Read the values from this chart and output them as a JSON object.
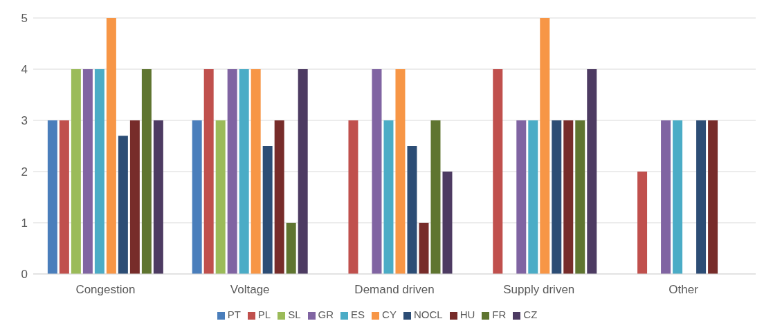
{
  "chart_data": {
    "type": "bar",
    "categories": [
      "Congestion",
      "Voltage",
      "Demand driven",
      "Supply driven",
      "Other"
    ],
    "series": [
      {
        "name": "PT",
        "color": "#4a7ebb",
        "values": [
          3,
          3,
          null,
          null,
          null
        ]
      },
      {
        "name": "PL",
        "color": "#c0504d",
        "values": [
          3,
          4,
          3,
          4,
          2
        ]
      },
      {
        "name": "SL",
        "color": "#9bbb59",
        "values": [
          4,
          3,
          null,
          null,
          null
        ]
      },
      {
        "name": "GR",
        "color": "#8064a2",
        "values": [
          4,
          4,
          4,
          3,
          3
        ]
      },
      {
        "name": "ES",
        "color": "#4bacc6",
        "values": [
          4,
          4,
          3,
          3,
          3
        ]
      },
      {
        "name": "CY",
        "color": "#f79646",
        "values": [
          5,
          4,
          4,
          5,
          null
        ]
      },
      {
        "name": "NOCL",
        "color": "#2c4d75",
        "values": [
          2.7,
          2.5,
          2.5,
          3,
          3
        ]
      },
      {
        "name": "HU",
        "color": "#772c2a",
        "values": [
          3,
          3,
          1,
          3,
          3
        ]
      },
      {
        "name": "FR",
        "color": "#5f7530",
        "values": [
          4,
          1,
          3,
          3,
          null
        ]
      },
      {
        "name": "CZ",
        "color": "#4d3b62",
        "values": [
          3,
          4,
          2,
          4,
          null
        ]
      }
    ],
    "ylim": [
      0,
      5
    ],
    "yticks": [
      0,
      1,
      2,
      3,
      4,
      5
    ],
    "grid": "y",
    "legend": "bottom"
  }
}
